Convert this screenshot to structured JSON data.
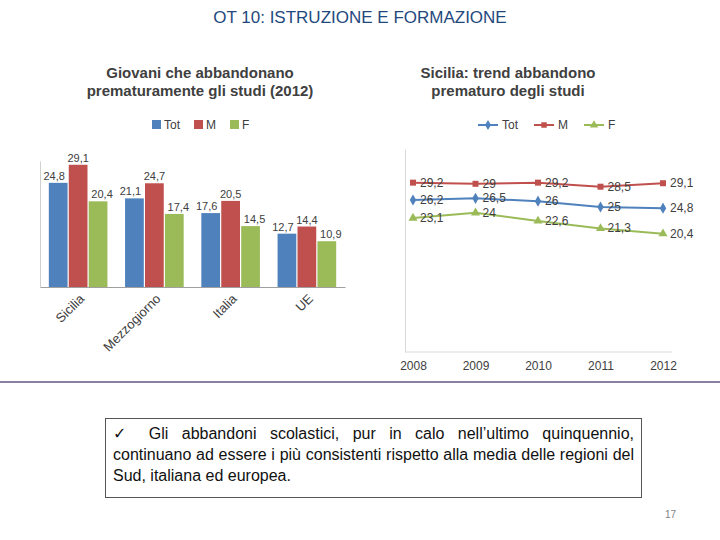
{
  "slide_title": "OT 10: ISTRUZIONE E FORMAZIONE",
  "chart_data": [
    {
      "type": "bar",
      "title": "Giovani che abbandonano prematuramente gli studi (2012)",
      "categories": [
        "Sicilia",
        "Mezzogiorno",
        "Italia",
        "UE"
      ],
      "series": [
        {
          "name": "Tot",
          "color": "#4F81BD",
          "values": [
            24.8,
            21.1,
            17.6,
            12.7
          ],
          "value_labels": [
            "24,8",
            "21,1",
            "17,6",
            "12,7"
          ]
        },
        {
          "name": "M",
          "color": "#C0504D",
          "values": [
            29.1,
            24.7,
            20.5,
            14.4
          ],
          "value_labels": [
            "29,1",
            "24,7",
            "20,5",
            "14,4"
          ]
        },
        {
          "name": "F",
          "color": "#9BBB59",
          "values": [
            20.4,
            17.4,
            14.5,
            10.9
          ],
          "value_labels": [
            "20,4",
            "17,4",
            "14,5",
            "10,9"
          ]
        }
      ],
      "ylim": [
        0,
        30
      ],
      "data_labels": true,
      "tick_labels": "x",
      "legend": "top"
    },
    {
      "type": "line",
      "title": "Sicilia: trend abbandono prematuro degli studi",
      "categories": [
        "2008",
        "2009",
        "2010",
        "2011",
        "2012"
      ],
      "series": [
        {
          "name": "Tot",
          "color": "#4F81BD",
          "marker": "diamond",
          "values": [
            26.2,
            26.5,
            26,
            25,
            24.8
          ],
          "value_labels": [
            "26,2",
            "26,5",
            "26",
            "25",
            "24,8"
          ]
        },
        {
          "name": "M",
          "color": "#C0504D",
          "marker": "square",
          "values": [
            29.2,
            29,
            29.2,
            28.5,
            29.1
          ],
          "value_labels": [
            "29,2",
            "29",
            "29,2",
            "28,5",
            "29,1"
          ]
        },
        {
          "name": "F",
          "color": "#9BBB59",
          "marker": "triangle",
          "values": [
            23.1,
            24,
            22.6,
            21.3,
            20.4
          ],
          "value_labels": [
            "23,1",
            "24",
            "22,6",
            "21,3",
            "20,4"
          ]
        }
      ],
      "ylim": [
        0,
        35
      ],
      "data_labels": true,
      "tick_labels": "x",
      "legend": "top"
    }
  ],
  "note": "✓ Gli abbandoni scolastici, pur in calo nell’ultimo quinquennio, continuano ad essere i più consistenti rispetto alla media delle regioni del Sud, italiana ed europea.",
  "page_number": "17"
}
